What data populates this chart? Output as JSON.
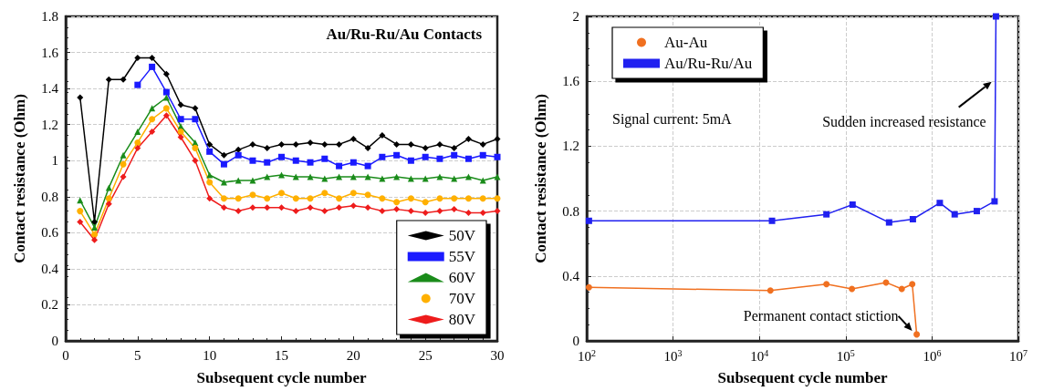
{
  "chart_data": [
    {
      "type": "line",
      "title": "Au/Ru-Ru/Au Contacts",
      "xlabel": "Subsequent cycle number",
      "ylabel": "Contact resistance (Ohm)",
      "x": [
        1,
        2,
        3,
        4,
        5,
        6,
        7,
        8,
        9,
        10,
        11,
        12,
        13,
        14,
        15,
        16,
        17,
        18,
        19,
        20,
        21,
        22,
        23,
        24,
        25,
        26,
        27,
        28,
        29,
        30
      ],
      "series": [
        {
          "name": "50V",
          "color": "#000000",
          "marker": "diamond",
          "values": [
            1.35,
            0.66,
            1.45,
            1.45,
            1.57,
            1.57,
            1.48,
            1.31,
            1.29,
            1.09,
            1.03,
            1.06,
            1.09,
            1.07,
            1.09,
            1.09,
            1.1,
            1.09,
            1.09,
            1.12,
            1.07,
            1.14,
            1.09,
            1.09,
            1.07,
            1.09,
            1.07,
            1.12,
            1.09,
            1.12
          ]
        },
        {
          "name": "55V",
          "color": "#1a1aff",
          "marker": "square",
          "values": [
            null,
            null,
            null,
            null,
            1.42,
            1.52,
            1.38,
            1.23,
            1.23,
            1.05,
            0.98,
            1.03,
            1.0,
            0.99,
            1.02,
            1.0,
            0.99,
            1.01,
            0.97,
            0.99,
            0.97,
            1.02,
            1.03,
            1.0,
            1.02,
            1.01,
            1.03,
            1.01,
            1.03,
            1.02
          ]
        },
        {
          "name": "60V",
          "color": "#1a8c1a",
          "marker": "triangle",
          "values": [
            0.78,
            0.63,
            0.85,
            1.03,
            1.16,
            1.29,
            1.35,
            1.19,
            1.1,
            0.92,
            0.88,
            0.89,
            0.89,
            0.91,
            0.92,
            0.91,
            0.91,
            0.9,
            0.91,
            0.91,
            0.91,
            0.9,
            0.91,
            0.9,
            0.9,
            0.91,
            0.9,
            0.91,
            0.89,
            0.91
          ]
        },
        {
          "name": "70V",
          "color": "#ffb000",
          "marker": "circle",
          "values": [
            0.72,
            0.59,
            0.79,
            0.98,
            1.1,
            1.23,
            1.29,
            1.16,
            1.07,
            0.88,
            0.79,
            0.79,
            0.81,
            0.79,
            0.82,
            0.79,
            0.79,
            0.82,
            0.79,
            0.82,
            0.81,
            0.79,
            0.77,
            0.79,
            0.77,
            0.79,
            0.79,
            0.79,
            0.79,
            0.79
          ]
        },
        {
          "name": "80V",
          "color": "#ee1c1c",
          "marker": "diamond",
          "values": [
            0.66,
            0.56,
            0.76,
            0.91,
            1.07,
            1.16,
            1.25,
            1.13,
            1.0,
            0.79,
            0.74,
            0.72,
            0.74,
            0.74,
            0.74,
            0.72,
            0.74,
            0.72,
            0.74,
            0.75,
            0.74,
            0.72,
            0.73,
            0.72,
            0.71,
            0.72,
            0.73,
            0.71,
            0.71,
            0.72
          ]
        }
      ],
      "xlim": [
        0,
        30
      ],
      "xticks": [
        0,
        5,
        10,
        15,
        20,
        25,
        30
      ],
      "ylim": [
        0,
        1.8
      ],
      "yticks": [
        0,
        0.2,
        0.4,
        0.6,
        0.8,
        1,
        1.2,
        1.4,
        1.6,
        1.8
      ],
      "grid": "y",
      "legend": "bottom right"
    },
    {
      "type": "line",
      "xlabel": "Subsequent cycle number",
      "ylabel": "Contact resistance (Ohm)",
      "series": [
        {
          "name": "Au-Au",
          "color": "#f07020",
          "marker": "circle",
          "x": [
            106,
            13400,
            59800,
            118000,
            293000,
            446000,
            590000,
            664000
          ],
          "values": [
            0.33,
            0.31,
            0.35,
            0.32,
            0.36,
            0.32,
            0.35,
            0.04
          ]
        },
        {
          "name": "Au/Ru-Ru/Au",
          "color": "#2020f0",
          "marker": "square",
          "x": [
            106,
            14000,
            59800,
            120000,
            318000,
            600000,
            1230000,
            1830000,
            3300000,
            5300000,
            5500000
          ],
          "values": [
            0.74,
            0.74,
            0.78,
            0.84,
            0.73,
            0.75,
            0.85,
            0.78,
            0.8,
            0.86,
            2
          ]
        }
      ],
      "xlim": [
        100,
        10000000
      ],
      "xticks": [
        {
          "value": 100,
          "label": "10$^{2}$"
        },
        {
          "value": 1000,
          "label": "10$^{3}$"
        },
        {
          "value": 10000,
          "label": "10$^{4}$"
        },
        {
          "value": 100000,
          "label": "10$^{5}$"
        },
        {
          "value": 1000000,
          "label": "10$^{6}$"
        },
        {
          "value": 10000000,
          "label": "10$^{7}$"
        }
      ],
      "ylim": [
        0,
        2
      ],
      "yticks": [
        0,
        0.4,
        0.8,
        1.2,
        1.6,
        2
      ],
      "log": "x",
      "grid": true,
      "legend": "top left",
      "annotations": [
        "Signal current: 5mA",
        {
          "text": "Sudden increased resistance",
          "x": 5400000,
          "y": 1.62
        },
        {
          "text": "Permanent contact stiction",
          "x": 664000,
          "y": 0.04
        }
      ]
    }
  ]
}
